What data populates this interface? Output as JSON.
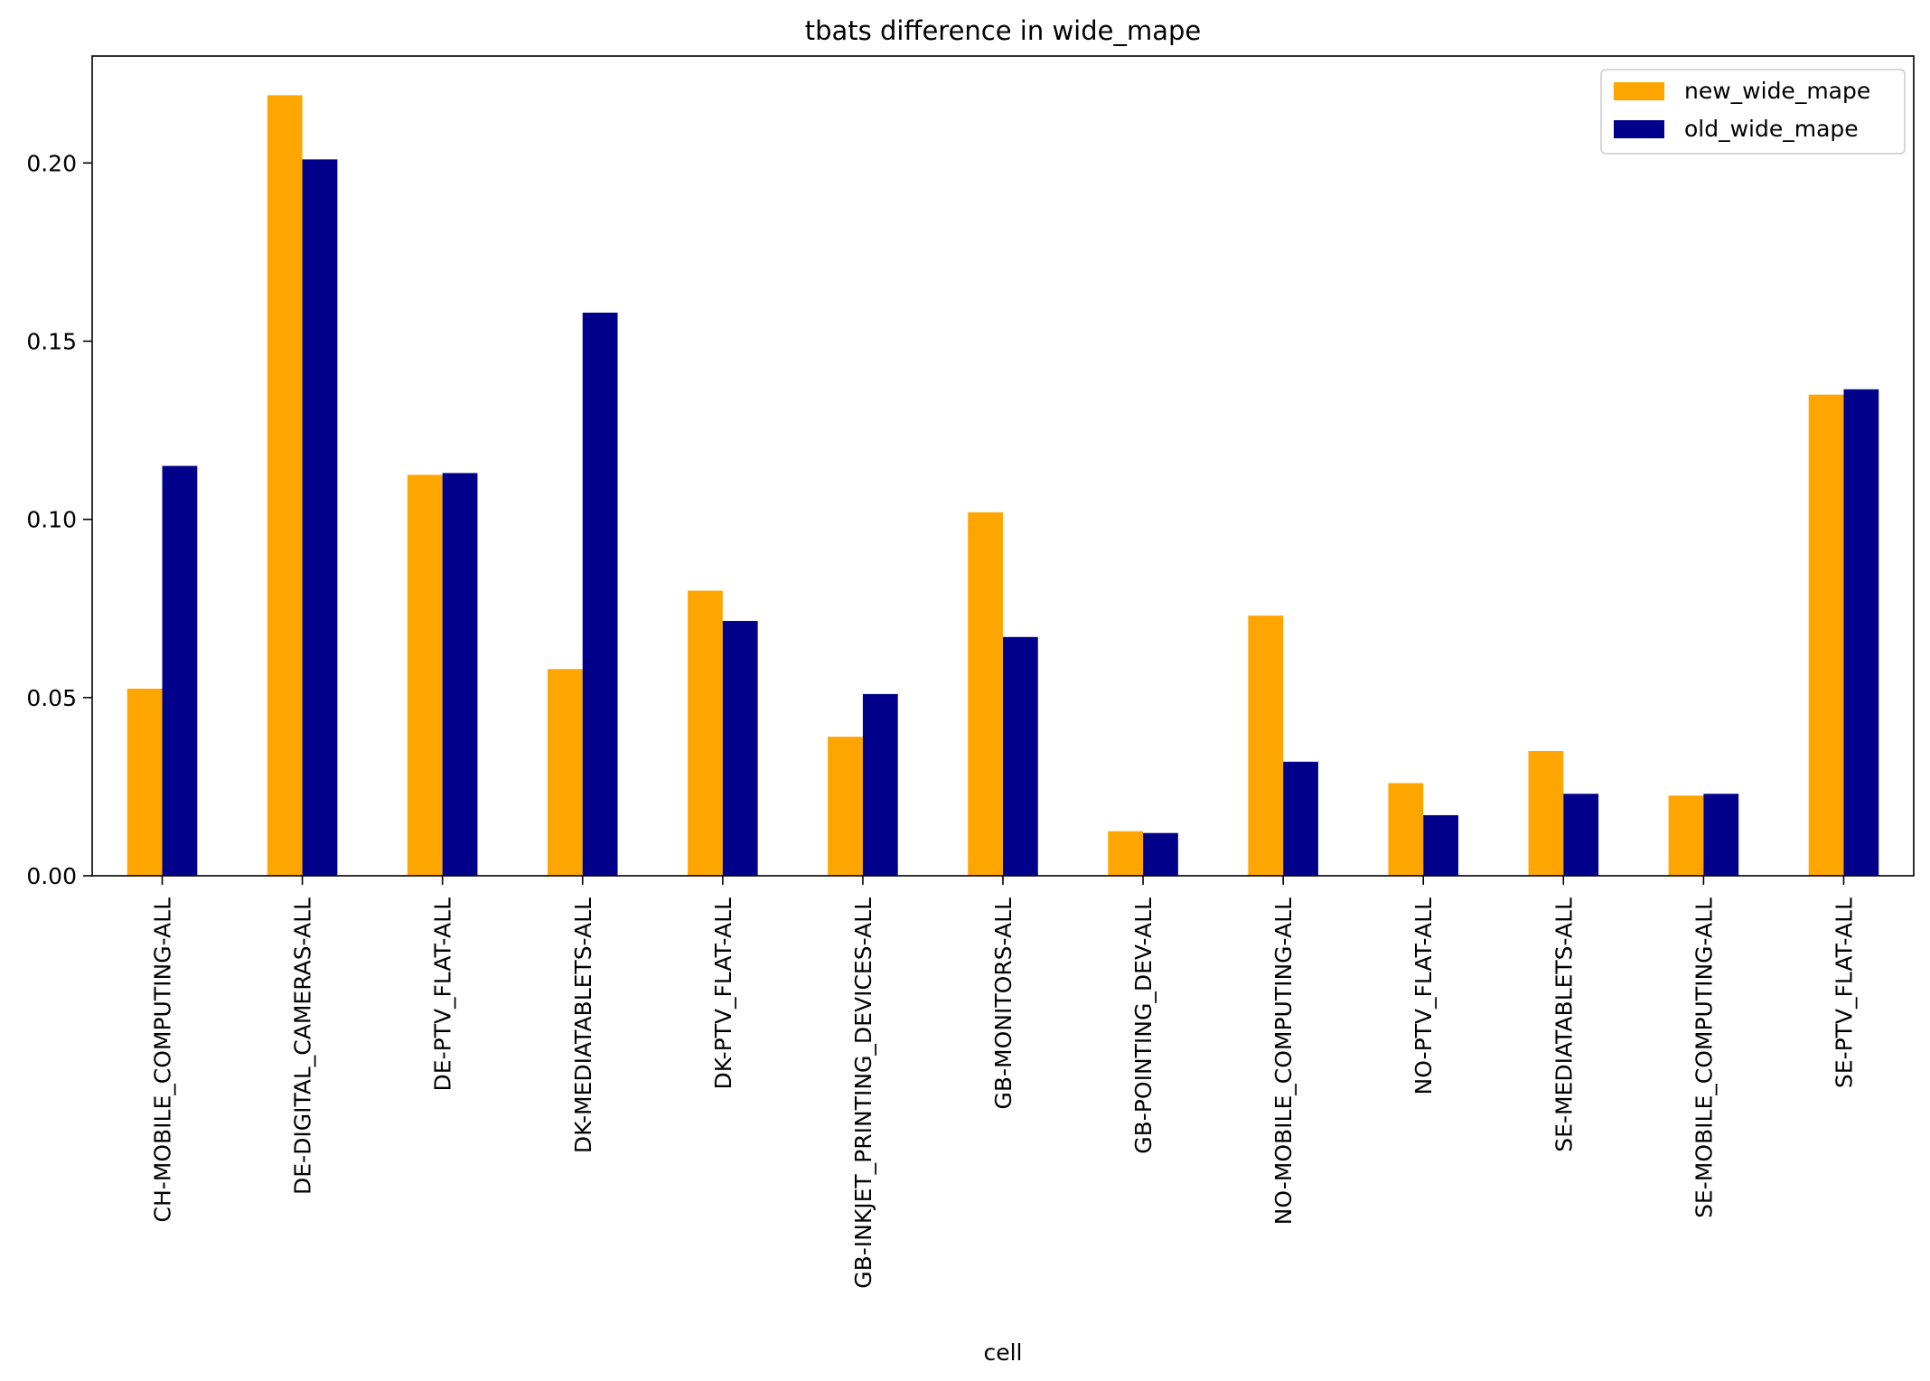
{
  "chart_data": {
    "type": "bar",
    "title": "tbats difference in wide_mape",
    "xlabel": "cell",
    "ylabel": "",
    "ylim": [
      0,
      0.23
    ],
    "yticks": [
      0.0,
      0.05,
      0.1,
      0.15,
      0.2
    ],
    "ytick_labels": [
      "0.00",
      "0.05",
      "0.10",
      "0.15",
      "0.20"
    ],
    "legend_position": "top-right",
    "categories": [
      "CH-MOBILE_COMPUTING-ALL",
      "DE-DIGITAL_CAMERAS-ALL",
      "DE-PTV_FLAT-ALL",
      "DK-MEDIATABLETS-ALL",
      "DK-PTV_FLAT-ALL",
      "GB-INKJET_PRINTING_DEVICES-ALL",
      "GB-MONITORS-ALL",
      "GB-POINTING_DEV-ALL",
      "NO-MOBILE_COMPUTING-ALL",
      "NO-PTV_FLAT-ALL",
      "SE-MEDIATABLETS-ALL",
      "SE-MOBILE_COMPUTING-ALL",
      "SE-PTV_FLAT-ALL"
    ],
    "series": [
      {
        "name": "new_wide_mape",
        "color": "#FFA500",
        "values": [
          0.0525,
          0.219,
          0.1125,
          0.058,
          0.08,
          0.039,
          0.102,
          0.0125,
          0.073,
          0.026,
          0.035,
          0.0225,
          0.135
        ]
      },
      {
        "name": "old_wide_mape",
        "color": "#00008B",
        "values": [
          0.115,
          0.201,
          0.113,
          0.158,
          0.0715,
          0.051,
          0.067,
          0.012,
          0.032,
          0.017,
          0.023,
          0.023,
          0.1365
        ]
      }
    ]
  }
}
